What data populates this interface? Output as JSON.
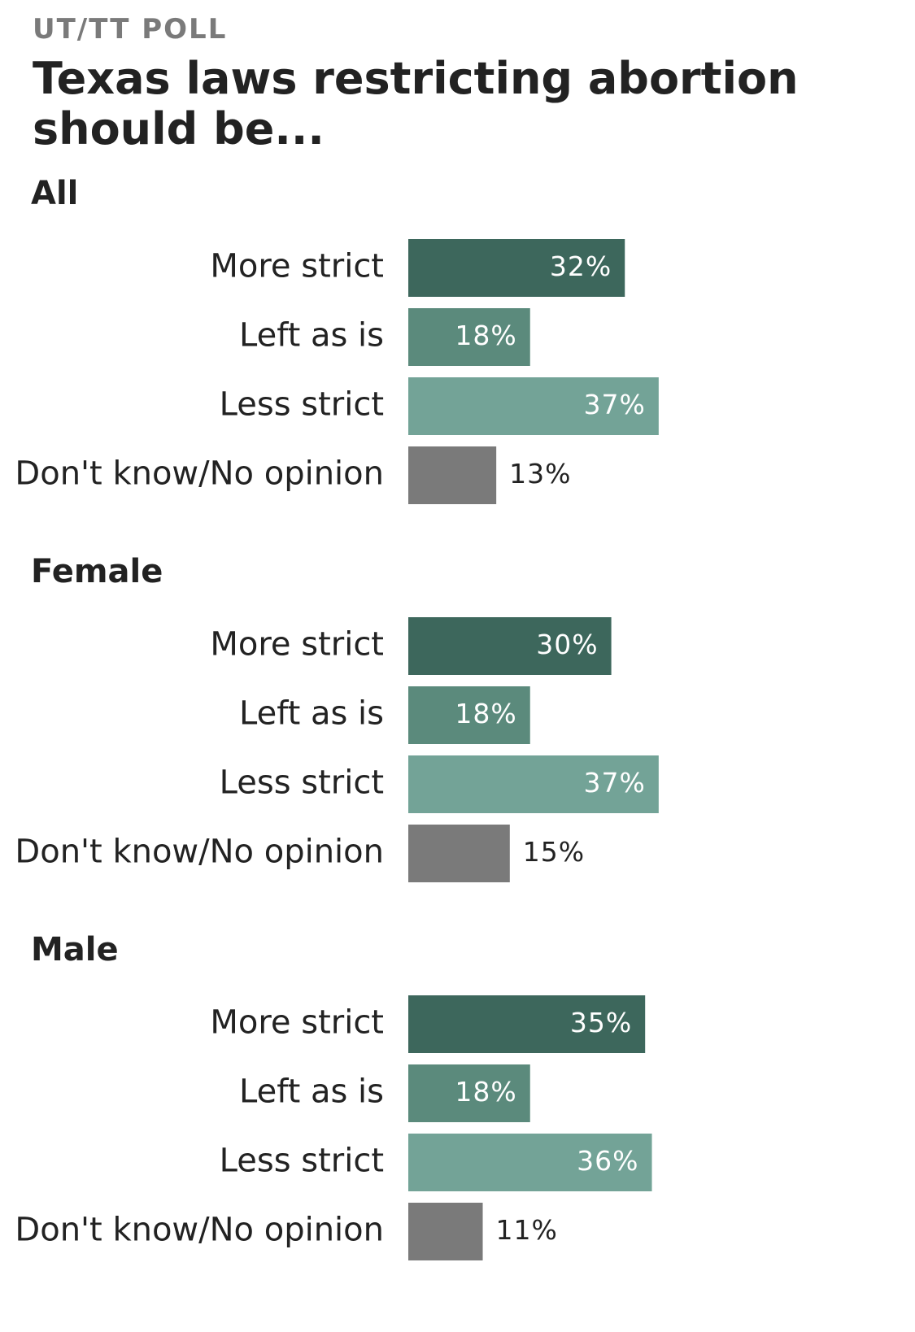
{
  "kicker": "UT/TT POLL",
  "title": "Texas laws restricting abortion should be...",
  "colors": {
    "more_strict": "#3d675c",
    "left_as_is": "#5b8a7c",
    "less_strict": "#73a397",
    "dont_know": "#7a7a7a",
    "value_inside": "#ffffff",
    "value_outside": "#222222"
  },
  "chart_data": {
    "type": "bar",
    "orientation": "horizontal",
    "categories": [
      "More strict",
      "Left as is",
      "Less strict",
      "Don't know/No opinion"
    ],
    "category_colors": [
      "more_strict",
      "left_as_is",
      "less_strict",
      "dont_know"
    ],
    "value_suffix": "%",
    "groups": [
      {
        "name": "All",
        "values": [
          32,
          18,
          37,
          13
        ]
      },
      {
        "name": "Female",
        "values": [
          30,
          18,
          37,
          15
        ]
      },
      {
        "name": "Male",
        "values": [
          35,
          18,
          36,
          11
        ]
      }
    ]
  }
}
